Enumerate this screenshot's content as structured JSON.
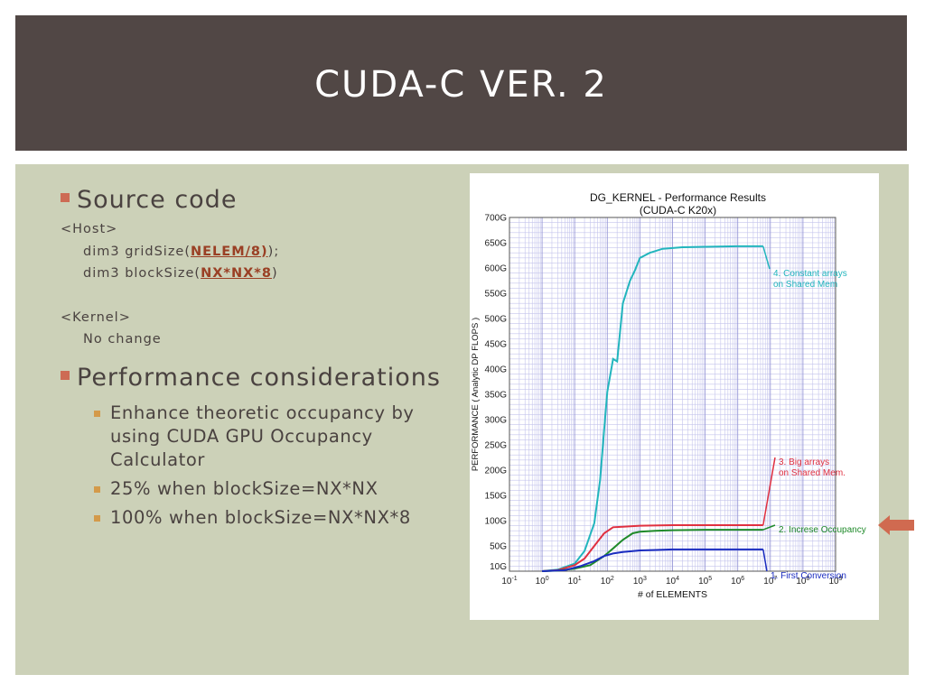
{
  "slide": {
    "title": "CUDA-C VER. 2"
  },
  "left_text": {
    "heading_source": "Source code",
    "host_label": "<Host>",
    "grid_line_prefix": "dim3 gridSize(",
    "grid_line_highlight": "NELEM/8)",
    "grid_line_suffix": ");",
    "block_line_prefix": "dim3 blockSize(",
    "block_line_highlight": "NX*NX*8",
    "block_line_suffix": ")",
    "kernel_label": "<Kernel>",
    "kernel_body": "No change",
    "heading_perf": "Performance considerations",
    "points": [
      "Enhance theoretic occupancy by using CUDA GPU Occupancy Calculator",
      "25% when blockSize=NX*NX",
      "100% when blockSize=NX*NX*8"
    ]
  },
  "colors": {
    "title_bg": "#514745",
    "content_bg": "#ccd1b8",
    "bullet_main": "#cd6b54",
    "bullet_sub": "#d49a4a",
    "highlight_text": "#9a3f24",
    "arrow": "#d06a50"
  },
  "chart_data": {
    "type": "line",
    "title": "DG_KERNEL - Performance Results",
    "subtitle": "(CUDA-C K20x)",
    "xlabel": "# of ELEMENTS",
    "ylabel": "PERFORMANCE ( Analytic DP FLOPS )",
    "x_scale": "log",
    "xlim": [
      0.1,
      1000000000
    ],
    "ylim": [
      0,
      700
    ],
    "grid": true,
    "x_ticks": [
      {
        "base": "10",
        "exp": "-1"
      },
      {
        "base": "10",
        "exp": "0"
      },
      {
        "base": "10",
        "exp": "1"
      },
      {
        "base": "10",
        "exp": "2"
      },
      {
        "base": "10",
        "exp": "3"
      },
      {
        "base": "10",
        "exp": "4"
      },
      {
        "base": "10",
        "exp": "5"
      },
      {
        "base": "10",
        "exp": "6"
      },
      {
        "base": "10",
        "exp": "7"
      },
      {
        "base": "10",
        "exp": "8"
      },
      {
        "base": "10",
        "exp": "9"
      }
    ],
    "y_ticks": [
      {
        "value": 10,
        "label": "10G"
      },
      {
        "value": 50,
        "label": "50G"
      },
      {
        "value": 100,
        "label": "100G"
      },
      {
        "value": 150,
        "label": "150G"
      },
      {
        "value": 200,
        "label": "200G"
      },
      {
        "value": 250,
        "label": "250G"
      },
      {
        "value": 300,
        "label": "300G"
      },
      {
        "value": 350,
        "label": "350G"
      },
      {
        "value": 400,
        "label": "400G"
      },
      {
        "value": 450,
        "label": "450G"
      },
      {
        "value": 500,
        "label": "500G"
      },
      {
        "value": 550,
        "label": "550G"
      },
      {
        "value": 600,
        "label": "600G"
      },
      {
        "value": 650,
        "label": "650G"
      },
      {
        "value": 700,
        "label": "700G"
      }
    ],
    "series": [
      {
        "label": "4. Constant arrays\non Shared Mem",
        "color": "#22b5bd",
        "points": [
          [
            1,
            0
          ],
          [
            3,
            3
          ],
          [
            10,
            15
          ],
          [
            20,
            40
          ],
          [
            40,
            95
          ],
          [
            60,
            180
          ],
          [
            80,
            280
          ],
          [
            100,
            355
          ],
          [
            150,
            420
          ],
          [
            200,
            415
          ],
          [
            300,
            530
          ],
          [
            500,
            575
          ],
          [
            700,
            595
          ],
          [
            1000,
            620
          ],
          [
            2000,
            630
          ],
          [
            5000,
            638
          ],
          [
            20000,
            641
          ],
          [
            100000,
            642
          ],
          [
            1000000,
            643
          ],
          [
            6000000,
            643
          ]
        ]
      },
      {
        "label": "3. Big arrays\non Shared Mem.",
        "color": "#e03040",
        "points": [
          [
            1,
            0
          ],
          [
            3,
            2
          ],
          [
            10,
            12
          ],
          [
            20,
            25
          ],
          [
            40,
            50
          ],
          [
            80,
            75
          ],
          [
            150,
            87
          ],
          [
            300,
            88
          ],
          [
            1000,
            90
          ],
          [
            10000,
            91
          ],
          [
            100000,
            91
          ],
          [
            1000000,
            91
          ],
          [
            6000000,
            91
          ]
        ]
      },
      {
        "label": "2. Increse Occupancy",
        "color": "#1f8a2a",
        "points": [
          [
            1,
            0
          ],
          [
            3,
            1
          ],
          [
            10,
            5
          ],
          [
            30,
            12
          ],
          [
            80,
            30
          ],
          [
            150,
            45
          ],
          [
            300,
            62
          ],
          [
            600,
            75
          ],
          [
            1000,
            78
          ],
          [
            3000,
            80
          ],
          [
            10000,
            81
          ],
          [
            100000,
            82
          ],
          [
            1000000,
            82
          ],
          [
            6000000,
            82
          ]
        ]
      },
      {
        "label": "1. First Conversion",
        "color": "#1a2cc0",
        "points": [
          [
            1,
            0
          ],
          [
            5,
            2
          ],
          [
            15,
            10
          ],
          [
            40,
            20
          ],
          [
            80,
            30
          ],
          [
            150,
            35
          ],
          [
            300,
            38
          ],
          [
            1000,
            41
          ],
          [
            3000,
            42
          ],
          [
            10000,
            43
          ],
          [
            100000,
            43
          ],
          [
            1000000,
            43
          ],
          [
            6000000,
            43
          ]
        ]
      }
    ]
  }
}
